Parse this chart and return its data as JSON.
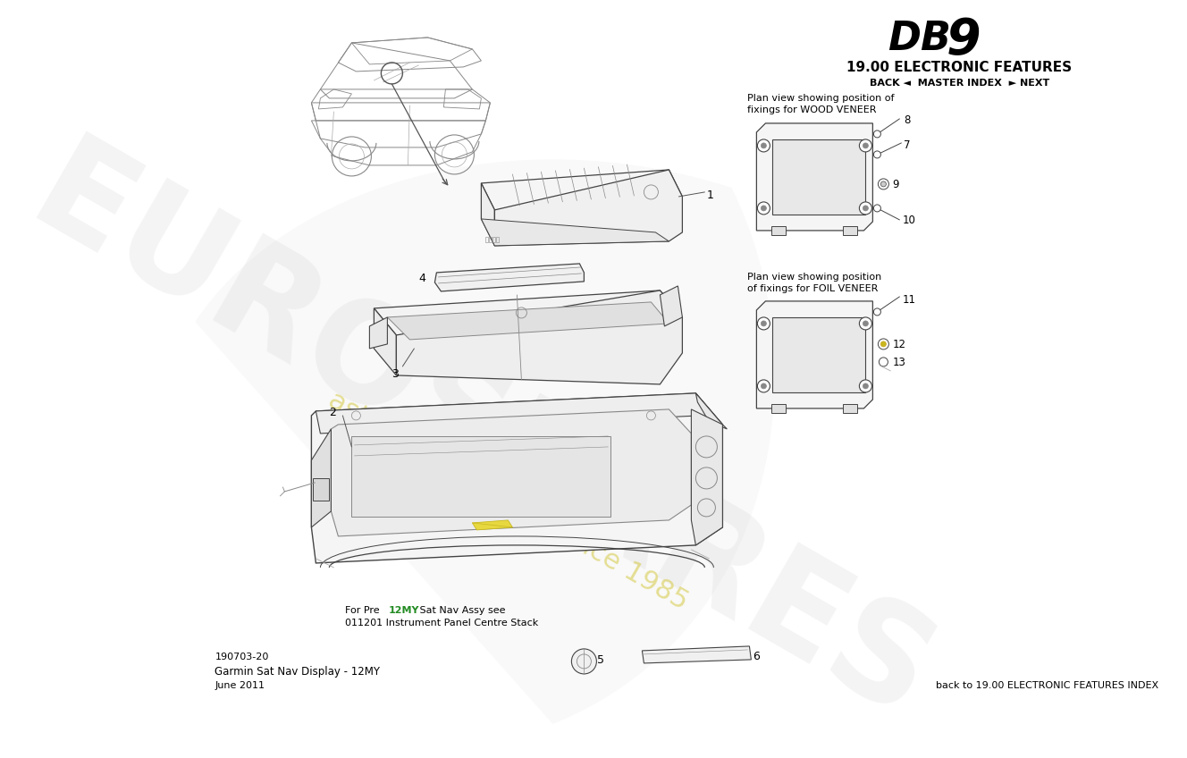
{
  "title_db": "DB",
  "title_9": "9",
  "title_section": "19.00 ELECTRONIC FEATURES",
  "nav_text": "BACK ◄  MASTER INDEX  ► NEXT",
  "bottom_left_code": "190703-20",
  "bottom_left_desc": "Garmin Sat Nav Display - 12MY",
  "bottom_left_date": "June 2011",
  "bottom_right_text": "back to 19.00 ELECTRONIC FEATURES INDEX",
  "wood_veneer_label_1": "Plan view showing position of",
  "wood_veneer_label_2": "fixings for WOOD VENEER",
  "foil_veneer_label_1": "Plan view showing position",
  "foil_veneer_label_2": "of fixings for FOIL VENEER",
  "note_line1": "For Pre 12MY Sat Nav Assy see",
  "note_line2": "011201 Instrument Panel Centre Stack",
  "note_highlight": "12MY",
  "bg_color": "#ffffff",
  "line_color": "#444444",
  "light_line": "#888888",
  "watermark_main": "EUROSPARES",
  "watermark_sub": "aston martin parts since 1985",
  "watermark_color_main": "#cccccc",
  "watermark_color_sub": "#d4c840"
}
